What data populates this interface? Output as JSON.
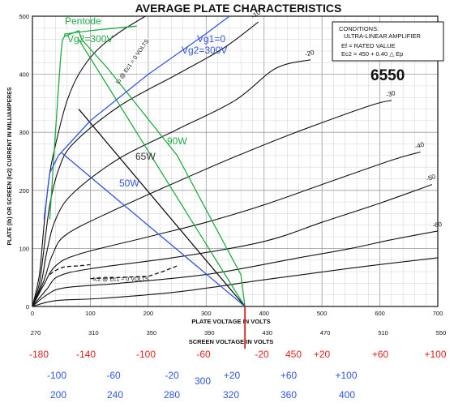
{
  "chart_data": {
    "type": "line",
    "title": "AVERAGE PLATE CHARACTERISTICS",
    "xlabel": "PLATE VOLTAGE IN VOLTS",
    "x2label": "SCREEN VOLTAGE IN VOLTS",
    "ylabel": "PLATE (Ib) OR SCREEN (Ic2) CURRENT IN MILLIAMPERES",
    "xlim": [
      0,
      700
    ],
    "ylim": [
      0,
      500
    ],
    "grid": true,
    "x_ticks": [
      "0",
      "100",
      "200",
      "300",
      "400",
      "500",
      "600",
      "700"
    ],
    "y_ticks": [
      "0",
      "100",
      "200",
      "300",
      "400",
      "500"
    ],
    "screen_ticks": [
      "270",
      "310",
      "350",
      "390",
      "430",
      "470",
      "510",
      "550"
    ],
    "tube": "6550",
    "conditions": {
      "heading": "CONDITIONS:",
      "mode": "ULTRA-LINEAR AMPLIFIER",
      "ef": "Ef = RATED VALUE",
      "ec2": "Ec2 = 450 + 0.40 △ Ep"
    },
    "grid_curves": [
      {
        "label": "Ib @ Ec1 = 0 VOLTS",
        "points": [
          [
            0,
            0
          ],
          [
            12,
            55
          ],
          [
            20,
            140
          ],
          [
            30,
            230
          ],
          [
            45,
            300
          ],
          [
            60,
            355
          ],
          [
            80,
            400
          ],
          [
            110,
            440
          ],
          [
            150,
            472
          ],
          [
            195,
            500
          ]
        ]
      },
      {
        "label": "-10",
        "points": [
          [
            0,
            0
          ],
          [
            12,
            40
          ],
          [
            20,
            100
          ],
          [
            30,
            175
          ],
          [
            45,
            235
          ],
          [
            70,
            280
          ],
          [
            150,
            345
          ],
          [
            250,
            400
          ],
          [
            330,
            445
          ],
          [
            390,
            490
          ]
        ]
      },
      {
        "label": "-20",
        "points": [
          [
            0,
            0
          ],
          [
            15,
            40
          ],
          [
            25,
            95
          ],
          [
            40,
            150
          ],
          [
            70,
            195
          ],
          [
            150,
            255
          ],
          [
            250,
            305
          ],
          [
            350,
            355
          ],
          [
            420,
            410
          ],
          [
            480,
            425
          ]
        ]
      },
      {
        "label": "-30",
        "points": [
          [
            0,
            0
          ],
          [
            20,
            45
          ],
          [
            35,
            90
          ],
          [
            60,
            125
          ],
          [
            150,
            170
          ],
          [
            250,
            215
          ],
          [
            350,
            258
          ],
          [
            450,
            298
          ],
          [
            580,
            345
          ],
          [
            620,
            355
          ]
        ]
      },
      {
        "label": "-40",
        "points": [
          [
            0,
            0
          ],
          [
            20,
            38
          ],
          [
            40,
            70
          ],
          [
            80,
            90
          ],
          [
            200,
            120
          ],
          [
            300,
            145
          ],
          [
            400,
            175
          ],
          [
            500,
            210
          ],
          [
            620,
            252
          ],
          [
            670,
            266
          ]
        ]
      },
      {
        "label": "-50",
        "points": [
          [
            0,
            0
          ],
          [
            25,
            30
          ],
          [
            45,
            52
          ],
          [
            100,
            65
          ],
          [
            250,
            85
          ],
          [
            400,
            112
          ],
          [
            500,
            145
          ],
          [
            600,
            178
          ],
          [
            690,
            210
          ]
        ]
      },
      {
        "label": "-60",
        "points": [
          [
            0,
            0
          ],
          [
            25,
            20
          ],
          [
            55,
            32
          ],
          [
            150,
            40
          ],
          [
            300,
            55
          ],
          [
            450,
            82
          ],
          [
            550,
            100
          ],
          [
            620,
            115
          ],
          [
            700,
            130
          ]
        ]
      },
      {
        "label": "",
        "points": [
          [
            0,
            0
          ],
          [
            40,
            10
          ],
          [
            120,
            14
          ],
          [
            250,
            25
          ],
          [
            400,
            46
          ],
          [
            550,
            66
          ],
          [
            700,
            84
          ]
        ]
      }
    ],
    "screen_curve": {
      "label": "Ic2 @ Ec1 = 0 VOLTS",
      "points": [
        [
          30,
          55
        ],
        [
          40,
          62
        ],
        [
          55,
          68
        ],
        [
          80,
          70
        ],
        [
          100,
          72
        ],
        [
          100,
          48
        ],
        [
          200,
          52
        ],
        [
          225,
          60
        ],
        [
          250,
          70
        ]
      ]
    },
    "load_lines": [
      {
        "label": "Pentode",
        "color": "#22aa44",
        "points": [
          [
            30,
            150
          ],
          [
            48,
            420
          ],
          [
            55,
            465
          ],
          [
            62,
            470
          ],
          [
            100,
            475
          ],
          [
            180,
            483
          ]
        ]
      },
      {
        "label": "Vg2=300V",
        "color": "#22aa44",
        "points": [
          [
            55,
            465
          ],
          [
            80,
            475
          ],
          [
            85,
            460
          ],
          [
            130,
            410
          ],
          [
            250,
            260
          ],
          [
            325,
            120
          ],
          [
            360,
            55
          ],
          [
            367,
            0
          ]
        ]
      },
      {
        "label": "90W",
        "color": "#22aa44",
        "points": [
          [
            80,
            460
          ],
          [
            367,
            0
          ]
        ]
      },
      {
        "label": "65W",
        "color": "#111111",
        "points": [
          [
            80,
            340
          ],
          [
            367,
            0
          ]
        ]
      },
      {
        "label": "50W",
        "color": "#3355dd",
        "points": [
          [
            50,
            265
          ],
          [
            367,
            0
          ]
        ]
      },
      {
        "label": "Vg1=0 Vg2=300V",
        "color": "#3355dd",
        "points": [
          [
            20,
            150
          ],
          [
            30,
            230
          ],
          [
            45,
            260
          ],
          [
            100,
            320
          ],
          [
            200,
            400
          ],
          [
            300,
            470
          ],
          [
            340,
            500
          ]
        ]
      }
    ],
    "annotations": {
      "pentode": "Pentode",
      "vg2_green": "Vg2=300V",
      "vg1_blue": "Vg1=0",
      "vg2_blue": "Vg2=300V",
      "w90": "90W",
      "w65": "65W",
      "w50": "50W"
    },
    "red_marker": {
      "x": 367,
      "label": "450"
    },
    "red_row": [
      "-180",
      "-140",
      "-100",
      "-60",
      "-20",
      "450",
      "+20",
      "+60",
      "+100"
    ],
    "blue_row": [
      "-100",
      "-60",
      "-20",
      "300",
      "+20",
      "+60",
      "+100"
    ],
    "blue_row2": [
      "200",
      "240",
      "280",
      "320",
      "360",
      "400"
    ]
  }
}
